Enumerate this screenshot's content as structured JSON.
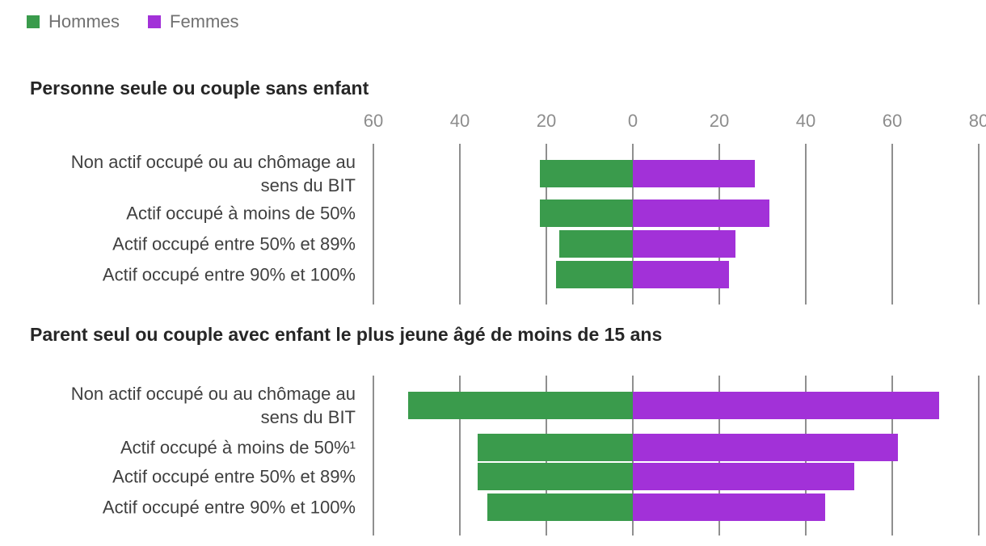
{
  "legend": {
    "items": [
      {
        "label": "Hommes",
        "color": "#3a9b4c"
      },
      {
        "label": "Femmes",
        "color": "#a231d8"
      }
    ]
  },
  "axis": {
    "tick_labels": [
      "60",
      "40",
      "20",
      "0",
      "20",
      "40",
      "60",
      "80"
    ],
    "tick_values": [
      -60,
      -40,
      -20,
      0,
      20,
      40,
      60,
      80
    ]
  },
  "colors": {
    "hommes": "#3a9b4c",
    "femmes": "#a231d8",
    "gridline": "#8f8f8f",
    "tick_text": "#8d8d8d",
    "legend_text": "#717171",
    "title_text": "#262626",
    "label_text": "#404040"
  },
  "chart_data": [
    {
      "type": "bar",
      "orientation": "diverging-horizontal",
      "title": "Personne seule ou couple sans enfant",
      "categories": [
        "Non actif occupé ou au chômage au\nsens du BIT",
        "Actif occupé à moins de 50%",
        "Actif occupé entre 50% et 89%",
        "Actif occupé entre 90% et 100%"
      ],
      "series": [
        {
          "name": "Hommes",
          "direction": "left",
          "values": [
            21.5,
            21.5,
            17.1,
            17.8
          ]
        },
        {
          "name": "Femmes",
          "direction": "right",
          "values": [
            28.2,
            31.6,
            23.8,
            22.3
          ]
        }
      ],
      "xlim": [
        -60,
        80
      ],
      "grid": true,
      "legend_position": "top-left"
    },
    {
      "type": "bar",
      "orientation": "diverging-horizontal",
      "title": "Parent seul ou couple avec enfant le plus jeune âgé de moins de 15 ans",
      "categories": [
        "Non actif occupé ou au chômage au\nsens du BIT",
        "Actif occupé à moins de 50%¹",
        "Actif occupé entre 50% et 89%",
        "Actif occupé entre 90% et 100%"
      ],
      "series": [
        {
          "name": "Hommes",
          "direction": "left",
          "values": [
            51.9,
            35.9,
            35.9,
            33.6
          ]
        },
        {
          "name": "Femmes",
          "direction": "right",
          "values": [
            70.9,
            61.4,
            51.3,
            44.5
          ]
        }
      ],
      "xlim": [
        -60,
        80
      ],
      "grid": true,
      "legend_position": "none"
    }
  ]
}
